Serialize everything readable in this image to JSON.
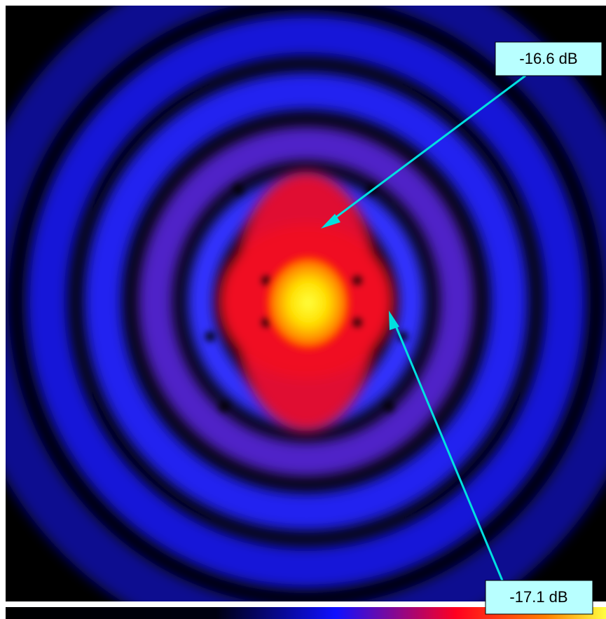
{
  "annotations": [
    {
      "label": "-16.6 dB"
    },
    {
      "label": "-17.1 dB"
    }
  ]
}
